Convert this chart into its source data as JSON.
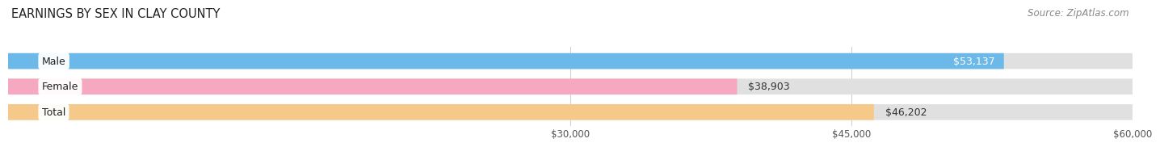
{
  "title": "EARNINGS BY SEX IN CLAY COUNTY",
  "source": "Source: ZipAtlas.com",
  "categories": [
    "Male",
    "Female",
    "Total"
  ],
  "values": [
    53137,
    38903,
    46202
  ],
  "bar_colors": [
    "#6cb8e8",
    "#f5a8c0",
    "#f5c98a"
  ],
  "bar_bg_color": "#e0e0e0",
  "xmin": 0,
  "xmax": 60000,
  "xticks": [
    30000,
    45000,
    60000
  ],
  "xtick_labels": [
    "$30,000",
    "$45,000",
    "$60,000"
  ],
  "title_fontsize": 10.5,
  "source_fontsize": 8.5,
  "tick_fontsize": 8.5,
  "bar_label_fontsize": 9,
  "cat_label_fontsize": 9,
  "background_color": "#ffffff",
  "bar_height": 0.62,
  "value_label_inside_color": "#ffffff",
  "value_label_outside_color": "#333333",
  "inside_threshold": 50000
}
